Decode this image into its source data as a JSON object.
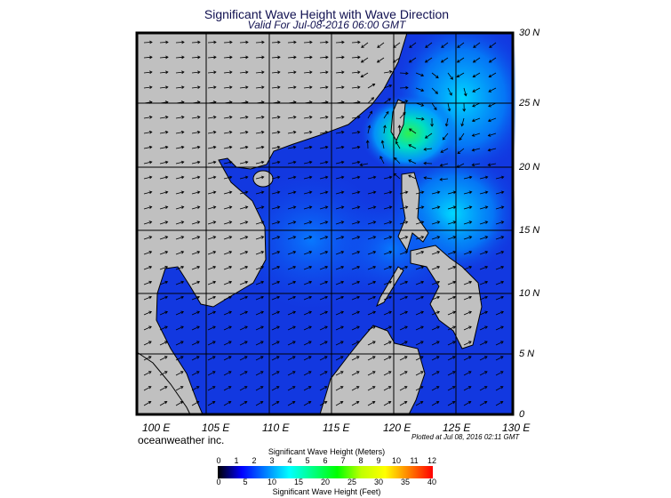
{
  "header": {
    "title": "Significant Wave Height with Wave Direction",
    "subtitle": "Valid For Jul-08-2016 06:00 GMT"
  },
  "map": {
    "longitude_labels": [
      "100 E",
      "105 E",
      "110 E",
      "115 E",
      "120 E",
      "125 E",
      "130 E"
    ],
    "latitude_labels": [
      "30 N",
      "25 N",
      "20 N",
      "15 N",
      "10 N",
      "5 N",
      "0"
    ],
    "colors": {
      "land": "#c0c0c0",
      "ocean_low": "#1030e0",
      "ocean_mid": "#00c8ff",
      "ocean_high": "#20e060",
      "grid": "#000000"
    }
  },
  "footer": {
    "brand": "oceanweather inc.",
    "plotted": "Plotted at Jul 08, 2016 02:11 GMT"
  },
  "legend": {
    "title_meters": "Significant Wave Height (Meters)",
    "title_feet": "Significant Wave Height (Feet)",
    "meters_ticks": [
      "0",
      "1",
      "2",
      "3",
      "4",
      "5",
      "6",
      "7",
      "8",
      "9",
      "10",
      "11",
      "12"
    ],
    "feet_ticks": [
      "0",
      "5",
      "10",
      "15",
      "20",
      "25",
      "30",
      "35",
      "40"
    ],
    "range_meters": [
      0,
      12
    ],
    "colors": [
      "#000000",
      "#0000ff",
      "#0080ff",
      "#00ffff",
      "#00ff80",
      "#00ff00",
      "#c0ff00",
      "#ffff00",
      "#ff8000",
      "#ff0000"
    ]
  }
}
